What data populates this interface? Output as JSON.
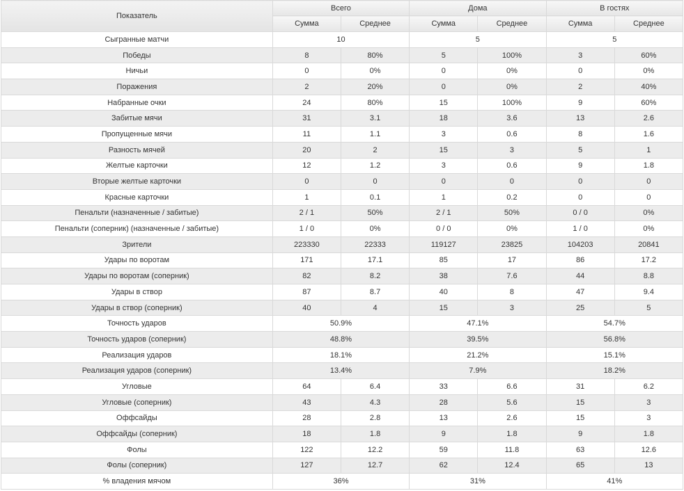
{
  "header": {
    "indicator": "Показатель",
    "groups": [
      "Всего",
      "Дома",
      "В гостях"
    ],
    "sub": [
      "Сумма",
      "Среднее"
    ]
  },
  "rows": [
    {
      "label": "Сыгранные матчи",
      "merged": true,
      "cells": [
        "10",
        "5",
        "5"
      ]
    },
    {
      "label": "Победы",
      "merged": false,
      "cells": [
        "8",
        "80%",
        "5",
        "100%",
        "3",
        "60%"
      ]
    },
    {
      "label": "Ничьи",
      "merged": false,
      "cells": [
        "0",
        "0%",
        "0",
        "0%",
        "0",
        "0%"
      ]
    },
    {
      "label": "Поражения",
      "merged": false,
      "cells": [
        "2",
        "20%",
        "0",
        "0%",
        "2",
        "40%"
      ]
    },
    {
      "label": "Набранные очки",
      "merged": false,
      "cells": [
        "24",
        "80%",
        "15",
        "100%",
        "9",
        "60%"
      ]
    },
    {
      "label": "Забитые мячи",
      "merged": false,
      "cells": [
        "31",
        "3.1",
        "18",
        "3.6",
        "13",
        "2.6"
      ]
    },
    {
      "label": "Пропущенные мячи",
      "merged": false,
      "cells": [
        "11",
        "1.1",
        "3",
        "0.6",
        "8",
        "1.6"
      ]
    },
    {
      "label": "Разность мячей",
      "merged": false,
      "cells": [
        "20",
        "2",
        "15",
        "3",
        "5",
        "1"
      ]
    },
    {
      "label": "Желтые карточки",
      "merged": false,
      "cells": [
        "12",
        "1.2",
        "3",
        "0.6",
        "9",
        "1.8"
      ]
    },
    {
      "label": "Вторые желтые карточки",
      "merged": false,
      "cells": [
        "0",
        "0",
        "0",
        "0",
        "0",
        "0"
      ]
    },
    {
      "label": "Красные карточки",
      "merged": false,
      "cells": [
        "1",
        "0.1",
        "1",
        "0.2",
        "0",
        "0"
      ]
    },
    {
      "label": "Пенальти (назначенные / забитые)",
      "merged": false,
      "cells": [
        "2 / 1",
        "50%",
        "2 / 1",
        "50%",
        "0 / 0",
        "0%"
      ]
    },
    {
      "label": "Пенальти (соперник) (назначенные / забитые)",
      "merged": false,
      "cells": [
        "1 / 0",
        "0%",
        "0 / 0",
        "0%",
        "1 / 0",
        "0%"
      ]
    },
    {
      "label": "Зрители",
      "merged": false,
      "cells": [
        "223330",
        "22333",
        "119127",
        "23825",
        "104203",
        "20841"
      ]
    },
    {
      "label": "Удары по воротам",
      "merged": false,
      "cells": [
        "171",
        "17.1",
        "85",
        "17",
        "86",
        "17.2"
      ]
    },
    {
      "label": "Удары по воротам (соперник)",
      "merged": false,
      "cells": [
        "82",
        "8.2",
        "38",
        "7.6",
        "44",
        "8.8"
      ]
    },
    {
      "label": "Удары в створ",
      "merged": false,
      "cells": [
        "87",
        "8.7",
        "40",
        "8",
        "47",
        "9.4"
      ]
    },
    {
      "label": "Удары в створ (соперник)",
      "merged": false,
      "cells": [
        "40",
        "4",
        "15",
        "3",
        "25",
        "5"
      ]
    },
    {
      "label": "Точность ударов",
      "merged": true,
      "cells": [
        "50.9%",
        "47.1%",
        "54.7%"
      ]
    },
    {
      "label": "Точность ударов (соперник)",
      "merged": true,
      "cells": [
        "48.8%",
        "39.5%",
        "56.8%"
      ]
    },
    {
      "label": "Реализация ударов",
      "merged": true,
      "cells": [
        "18.1%",
        "21.2%",
        "15.1%"
      ]
    },
    {
      "label": "Реализация ударов (соперник)",
      "merged": true,
      "cells": [
        "13.4%",
        "7.9%",
        "18.2%"
      ]
    },
    {
      "label": "Угловые",
      "merged": false,
      "cells": [
        "64",
        "6.4",
        "33",
        "6.6",
        "31",
        "6.2"
      ]
    },
    {
      "label": "Угловые (соперник)",
      "merged": false,
      "cells": [
        "43",
        "4.3",
        "28",
        "5.6",
        "15",
        "3"
      ]
    },
    {
      "label": "Оффсайды",
      "merged": false,
      "cells": [
        "28",
        "2.8",
        "13",
        "2.6",
        "15",
        "3"
      ]
    },
    {
      "label": "Оффсайды (соперник)",
      "merged": false,
      "cells": [
        "18",
        "1.8",
        "9",
        "1.8",
        "9",
        "1.8"
      ]
    },
    {
      "label": "Фолы",
      "merged": false,
      "cells": [
        "122",
        "12.2",
        "59",
        "11.8",
        "63",
        "12.6"
      ]
    },
    {
      "label": "Фолы (соперник)",
      "merged": false,
      "cells": [
        "127",
        "12.7",
        "62",
        "12.4",
        "65",
        "13"
      ]
    },
    {
      "label": "% владения мячом",
      "merged": true,
      "cells": [
        "36%",
        "31%",
        "41%"
      ]
    }
  ]
}
